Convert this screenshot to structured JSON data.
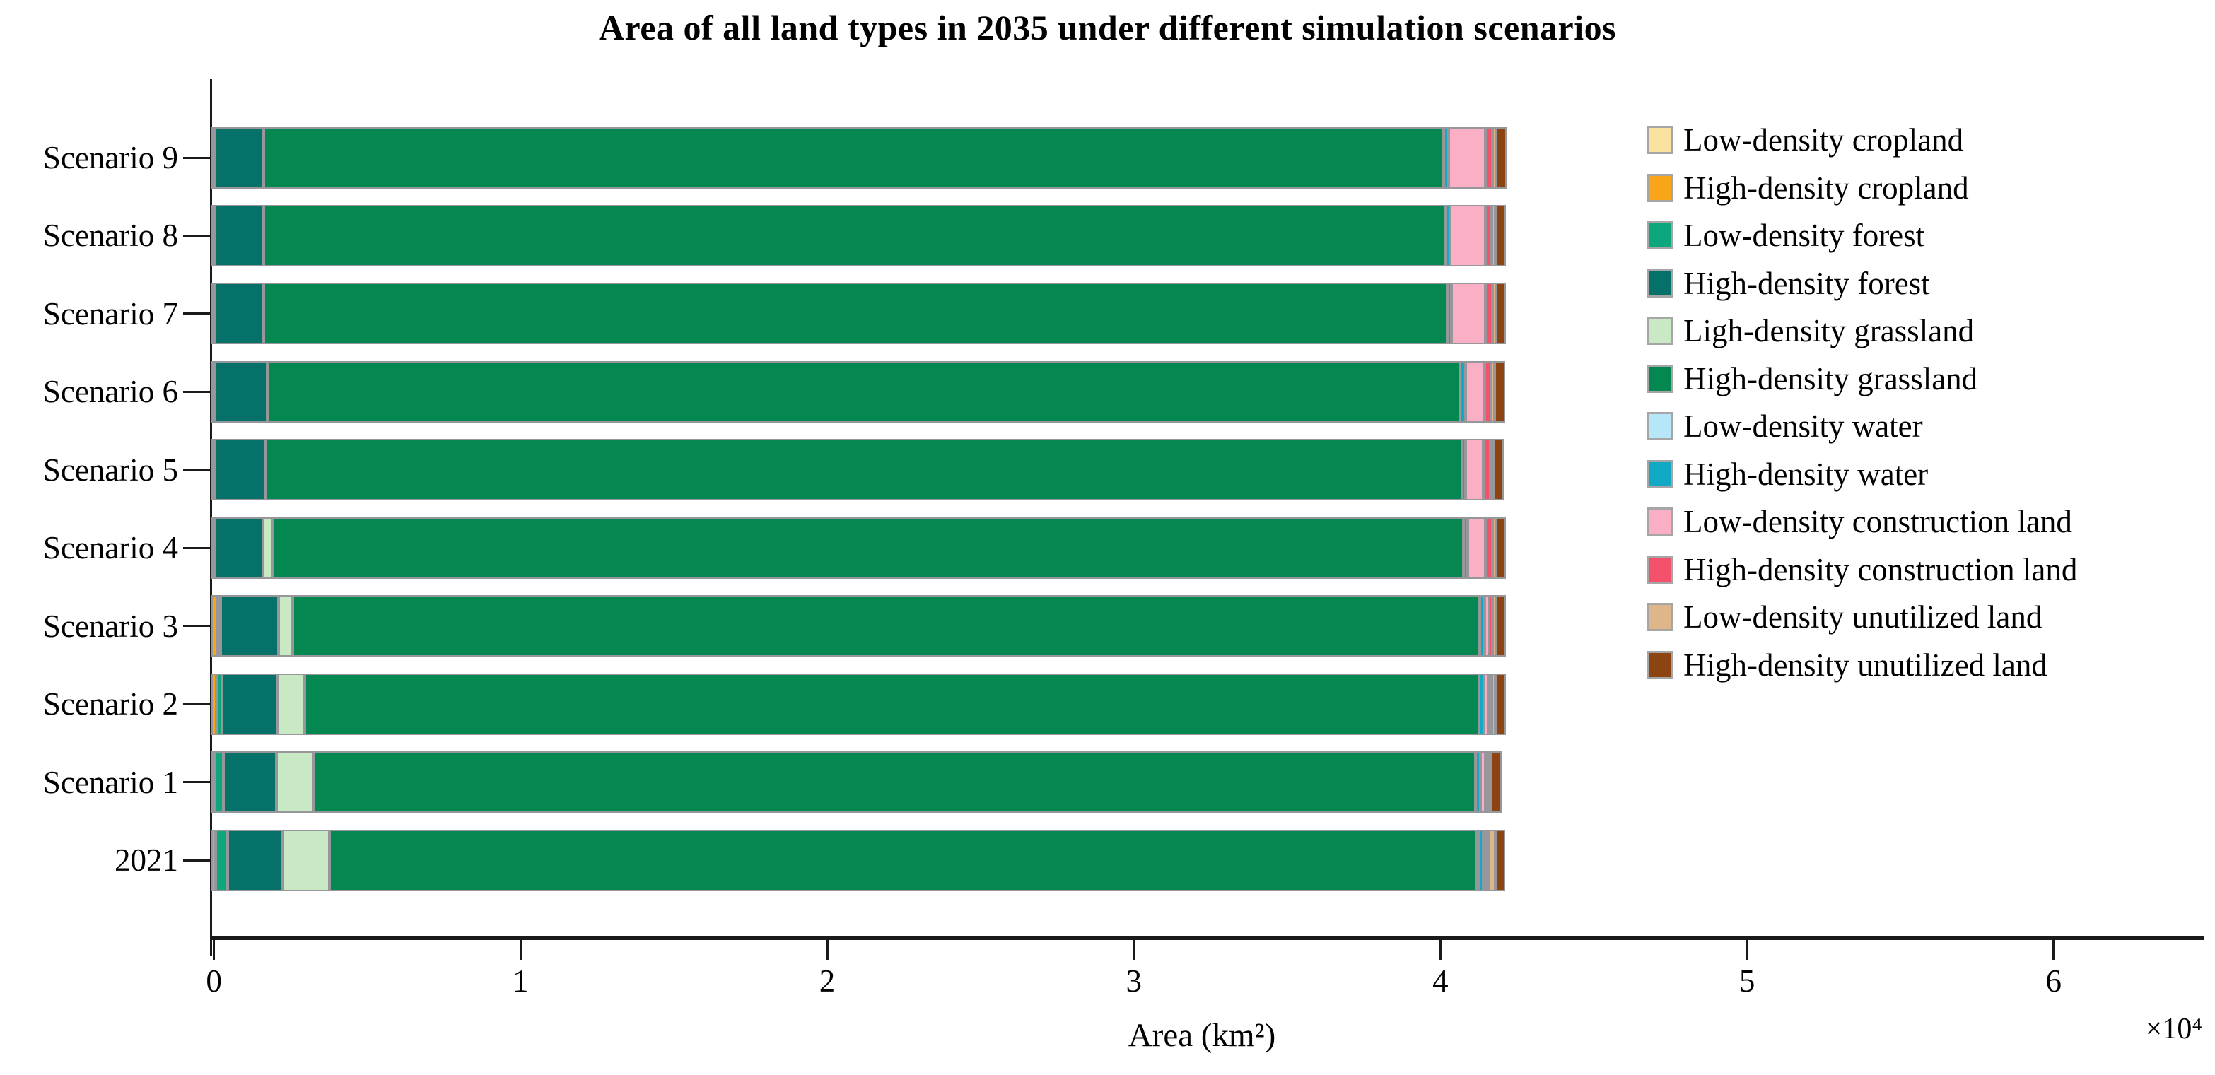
{
  "title": "Area of all land types in 2035 under different simulation scenarios",
  "chart_data": {
    "type": "bar",
    "orientation": "horizontal-stacked",
    "categories": [
      "Scenario 9",
      "Scenario 8",
      "Scenario 7",
      "Scenario 6",
      "Scenario 5",
      "Scenario 4",
      "Scenario 3",
      "Scenario 2",
      "Scenario 1",
      "2021"
    ],
    "value_unit": "10^4 km^2",
    "series": [
      {
        "name": "Low-density cropland",
        "color": "#FAE3A1",
        "values": [
          0,
          0,
          0,
          0,
          0,
          0,
          0,
          0,
          0,
          0
        ]
      },
      {
        "name": "High-density cropland",
        "color": "#F9A51A",
        "values": [
          0.01,
          0.01,
          0.01,
          0.01,
          0.01,
          0.006,
          0.02,
          0.015,
          0.01,
          0.013
        ]
      },
      {
        "name": "Low-density forest",
        "color": "#0DA77E",
        "values": [
          0,
          0,
          0,
          0,
          0,
          0,
          0.008,
          0.019,
          0.03,
          0.039
        ]
      },
      {
        "name": "High-density forest",
        "color": "#067168",
        "values": [
          0.16,
          0.16,
          0.16,
          0.173,
          0.168,
          0.16,
          0.19,
          0.18,
          0.172,
          0.18
        ]
      },
      {
        "name": "Ligh-density grassland",
        "color": "#C9E9C4",
        "values": [
          0,
          0,
          0,
          0,
          0,
          0.03,
          0.047,
          0.09,
          0.12,
          0.152
        ]
      },
      {
        "name": "High-density grassland",
        "color": "#048750",
        "values": [
          3.85,
          3.853,
          3.86,
          3.89,
          3.9,
          3.885,
          3.87,
          3.83,
          3.79,
          3.74
        ]
      },
      {
        "name": "Low-density water",
        "color": "#B5E7F8",
        "values": [
          0,
          0,
          0,
          0,
          0,
          0,
          0,
          0,
          0,
          0.01
        ]
      },
      {
        "name": "High-density water",
        "color": "#12A9C4",
        "values": [
          0.015,
          0.016,
          0.015,
          0.017,
          0.013,
          0.013,
          0.016,
          0.016,
          0.016,
          0.015
        ]
      },
      {
        "name": "Low-density construction land",
        "color": "#FBAFC5",
        "values": [
          0.12,
          0.115,
          0.11,
          0.062,
          0.058,
          0.058,
          0.015,
          0.015,
          0.016,
          0.005
        ]
      },
      {
        "name": "High-density construction land",
        "color": "#F4516C",
        "values": [
          0.022,
          0.022,
          0.022,
          0.022,
          0.022,
          0.024,
          0.01,
          0.01,
          0.01,
          0.006
        ]
      },
      {
        "name": "Low-density unutilized land",
        "color": "#DFB689",
        "values": [
          0.013,
          0.012,
          0.012,
          0.012,
          0.012,
          0.011,
          0.012,
          0.013,
          0.01,
          0.019
        ]
      },
      {
        "name": "High-density unutilized land",
        "color": "#8C4512",
        "values": [
          0.035,
          0.034,
          0.033,
          0.033,
          0.033,
          0.032,
          0.033,
          0.033,
          0.034,
          0.034
        ]
      }
    ],
    "xlabel": "Area (km²)",
    "x_offset_label": "×10⁴",
    "x_ticks": [
      0,
      1,
      2,
      3,
      4,
      5,
      6
    ],
    "xlim": [
      0,
      6.5
    ],
    "grid": false,
    "legend_position": "right"
  },
  "colors": {
    "background": "#FFFFFF",
    "axis": "#1A1A1A",
    "segment_border": "#97979B",
    "legend_swatch_border": "#A6A6A6"
  }
}
